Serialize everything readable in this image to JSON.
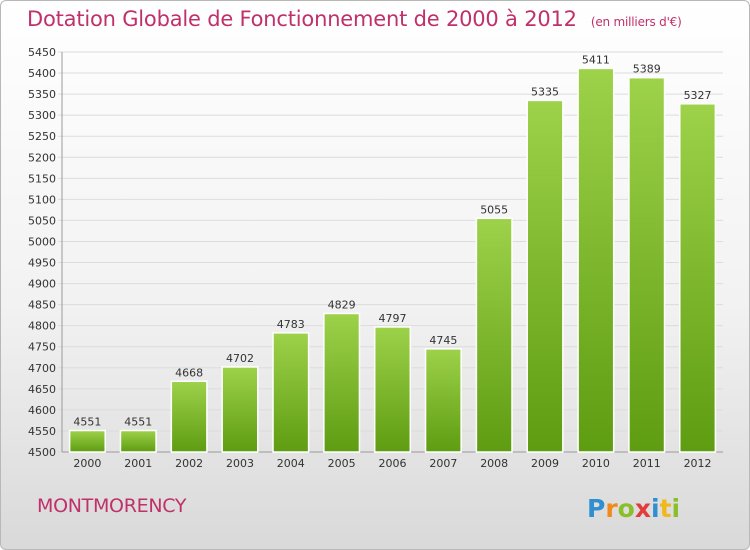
{
  "header": {
    "title": "Dotation Globale de Fonctionnement de 2000 à 2012",
    "subtitle": "(en milliers d'€)"
  },
  "footer": {
    "city": "MONTMORENCY",
    "brand_logo": "Proxiti"
  },
  "colors": {
    "title": "#c0306a",
    "bar_top": "#9dd24a",
    "bar_bottom": "#5e9c12",
    "grid": "#dcdcdc",
    "axis_text": "#333333"
  },
  "chart_data": {
    "type": "bar",
    "categories": [
      "2000",
      "2001",
      "2002",
      "2003",
      "2004",
      "2005",
      "2006",
      "2007",
      "2008",
      "2009",
      "2010",
      "2011",
      "2012"
    ],
    "values": [
      4551,
      4551,
      4668,
      4702,
      4783,
      4829,
      4797,
      4745,
      5055,
      5335,
      5411,
      5389,
      5327
    ],
    "ylim": [
      4500,
      5450
    ],
    "ytick_step": 50,
    "grid": true,
    "legend": "none"
  }
}
